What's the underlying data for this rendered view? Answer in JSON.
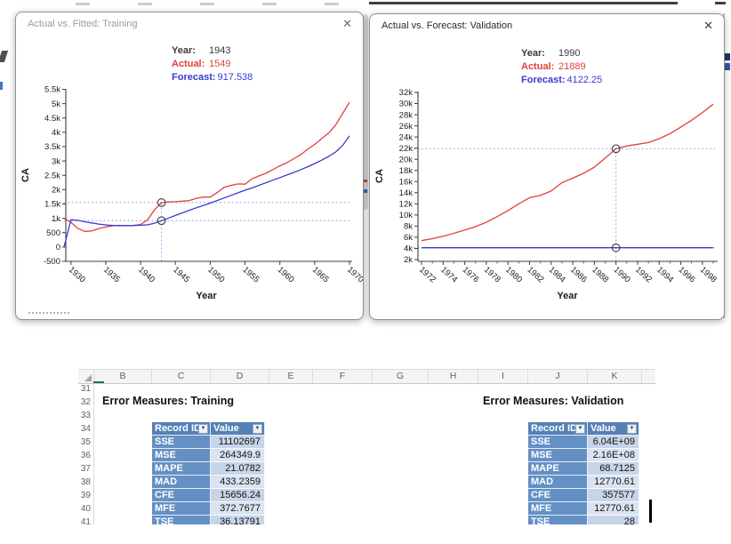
{
  "windows": [
    {
      "title": "Actual vs. Fitted: Training",
      "close_glyph": "✕",
      "tooltip": {
        "rows": [
          {
            "label": "Year:",
            "value": "1943"
          },
          {
            "label": "Actual:",
            "value": "1549"
          },
          {
            "label": "Forecast:",
            "value": "917.538"
          }
        ]
      }
    },
    {
      "title": "Actual vs. Forecast: Validation",
      "close_glyph": "✕",
      "tooltip": {
        "rows": [
          {
            "label": "Year:",
            "value": "1990"
          },
          {
            "label": "Actual:",
            "value": "21889"
          },
          {
            "label": "Forecast:",
            "value": "4122.25"
          }
        ]
      }
    }
  ],
  "chart_data": [
    {
      "type": "line",
      "title": "Actual vs. Fitted: Training",
      "xlabel": "Year",
      "ylabel": "CA",
      "xlim": [
        1929,
        1970
      ],
      "ylim": [
        -500,
        5500
      ],
      "grid": false,
      "legend": "none",
      "yticks": {
        "values": [
          -500,
          0,
          500,
          1000,
          1500,
          2000,
          2500,
          3000,
          3500,
          4000,
          4500,
          5000,
          5500
        ],
        "labels": [
          "-500",
          "0",
          "500",
          "1k",
          "1.5k",
          "2k",
          "2.5k",
          "3k",
          "3.5k",
          "4k",
          "4.5k",
          "5k",
          "5.5k"
        ]
      },
      "xticks": [
        1930,
        1935,
        1940,
        1945,
        1950,
        1955,
        1960,
        1965,
        1970
      ],
      "x": [
        1929,
        1930,
        1931,
        1932,
        1933,
        1934,
        1935,
        1936,
        1937,
        1938,
        1939,
        1940,
        1941,
        1942,
        1943,
        1944,
        1945,
        1946,
        1947,
        1948,
        1949,
        1950,
        1951,
        1952,
        1953,
        1954,
        1955,
        1956,
        1957,
        1958,
        1959,
        1960,
        1961,
        1962,
        1963,
        1964,
        1965,
        1966,
        1967,
        1968,
        1969,
        1970
      ],
      "series": [
        {
          "name": "Actual",
          "color_key": "actual",
          "values": [
            1000,
            860,
            640,
            545,
            560,
            645,
            700,
            740,
            755,
            740,
            755,
            785,
            950,
            1300,
            1549,
            1570,
            1580,
            1600,
            1620,
            1700,
            1745,
            1740,
            1900,
            2080,
            2150,
            2200,
            2190,
            2380,
            2480,
            2570,
            2700,
            2830,
            2940,
            3080,
            3220,
            3410,
            3580,
            3780,
            3970,
            4250,
            4650,
            5050
          ]
        },
        {
          "name": "Fitted",
          "color_key": "forecast",
          "values": [
            0,
            950,
            930,
            880,
            840,
            800,
            770,
            750,
            745,
            745,
            750,
            760,
            775,
            830,
            917.538,
            1010,
            1100,
            1190,
            1280,
            1370,
            1450,
            1530,
            1620,
            1710,
            1800,
            1890,
            1980,
            2060,
            2150,
            2240,
            2330,
            2420,
            2510,
            2600,
            2700,
            2800,
            2910,
            3030,
            3160,
            3310,
            3540,
            3880
          ]
        }
      ],
      "crosshair": {
        "x": 1943,
        "actual": 1549,
        "forecast": 917.538
      }
    },
    {
      "type": "line",
      "title": "Actual vs. Forecast: Validation",
      "xlabel": "Year",
      "ylabel": "CA",
      "xlim": [
        1972,
        1999
      ],
      "ylim": [
        2000,
        32000
      ],
      "grid": false,
      "legend": "none",
      "yticks": {
        "values": [
          2000,
          4000,
          6000,
          8000,
          10000,
          12000,
          14000,
          16000,
          18000,
          20000,
          22000,
          24000,
          26000,
          28000,
          30000,
          32000
        ],
        "labels": [
          "2k",
          "4k",
          "6k",
          "8k",
          "10k",
          "12k",
          "14k",
          "16k",
          "18k",
          "20k",
          "22k",
          "24k",
          "26k",
          "28k",
          "30k",
          "32k"
        ]
      },
      "xticks": [
        1972,
        1974,
        1976,
        1978,
        1980,
        1982,
        1984,
        1986,
        1988,
        1990,
        1992,
        1994,
        1996,
        1998
      ],
      "x": [
        1972,
        1973,
        1974,
        1975,
        1976,
        1977,
        1978,
        1979,
        1980,
        1981,
        1982,
        1983,
        1984,
        1985,
        1986,
        1987,
        1988,
        1989,
        1990,
        1991,
        1992,
        1993,
        1994,
        1995,
        1996,
        1997,
        1998,
        1999
      ],
      "series": [
        {
          "name": "Actual",
          "color_key": "actual",
          "values": [
            5400,
            5750,
            6200,
            6700,
            7300,
            7900,
            8700,
            9700,
            10800,
            12000,
            13100,
            13500,
            14300,
            15800,
            16600,
            17500,
            18600,
            20200,
            21889,
            22400,
            22700,
            23000,
            23700,
            24600,
            25800,
            27000,
            28400,
            29900
          ]
        },
        {
          "name": "Forecast",
          "color_key": "forecast",
          "values": [
            4122.25,
            4122.25,
            4122.25,
            4122.25,
            4122.25,
            4122.25,
            4122.25,
            4122.25,
            4122.25,
            4122.25,
            4122.25,
            4122.25,
            4122.25,
            4122.25,
            4122.25,
            4122.25,
            4122.25,
            4122.25,
            4122.25,
            4122.25,
            4122.25,
            4122.25,
            4122.25,
            4122.25,
            4122.25,
            4122.25,
            4122.25,
            4122.25
          ]
        }
      ],
      "crosshair": {
        "x": 1990,
        "actual": 21889,
        "forecast": 4122.25
      }
    }
  ],
  "spreadsheet": {
    "column_letters": [
      "B",
      "C",
      "D",
      "E",
      "F",
      "G",
      "H",
      "I",
      "J",
      "K"
    ],
    "row_numbers": [
      31,
      32,
      33,
      34,
      35,
      36,
      37,
      38,
      39,
      40,
      41
    ],
    "filter_glyph": "▼",
    "sections": [
      {
        "title": "Error Measures: Training",
        "headers": [
          "Record ID",
          "Value"
        ],
        "rows": [
          [
            "SSE",
            "11102697"
          ],
          [
            "MSE",
            "264349.9"
          ],
          [
            "MAPE",
            "21.0782"
          ],
          [
            "MAD",
            "433.2359"
          ],
          [
            "CFE",
            "15656.24"
          ],
          [
            "MFE",
            "372.7677"
          ],
          [
            "TSE",
            "36.13791"
          ]
        ]
      },
      {
        "title": "Error Measures: Validation",
        "headers": [
          "Record ID",
          "Value"
        ],
        "rows": [
          [
            "SSE",
            "6.04E+09"
          ],
          [
            "MSE",
            "2.16E+08"
          ],
          [
            "MAPE",
            "68.7125"
          ],
          [
            "MAD",
            "12770.61"
          ],
          [
            "CFE",
            "357577"
          ],
          [
            "MFE",
            "12770.61"
          ],
          [
            "TSE",
            "28"
          ]
        ]
      }
    ]
  },
  "colors": {
    "actual": "#e2413c",
    "forecast": "#3a3ad2",
    "crosshair": "#9aa3ee",
    "axis": "#3c3c3c",
    "table_header_bg": "#5580b8",
    "table_label_bg": "#6490c4",
    "row_odd_bg": "#c7d5e8",
    "row_even_bg": "#dae3f0",
    "active_cell_green": "#217346"
  }
}
